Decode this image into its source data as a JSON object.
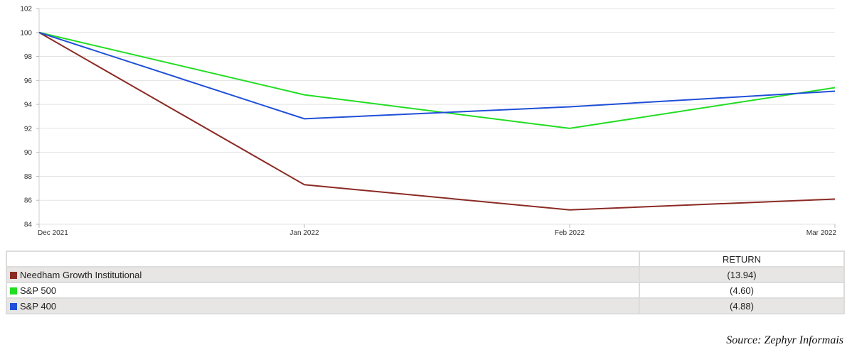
{
  "chart_data": {
    "type": "line",
    "x": [
      "Dec 2021",
      "Jan 2022",
      "Feb 2022",
      "Mar 2022"
    ],
    "ylim": [
      84,
      102
    ],
    "yticks": [
      84,
      86,
      88,
      90,
      92,
      94,
      96,
      98,
      100,
      102
    ],
    "grid": true,
    "series": [
      {
        "name": "Needham Growth Institutional",
        "color": "#8b2a24",
        "values": [
          100,
          87.3,
          85.2,
          86.1
        ]
      },
      {
        "name": "S&P 500",
        "color": "#22dd22",
        "values": [
          100,
          94.8,
          92.0,
          95.4
        ]
      },
      {
        "name": "S&P 400",
        "color": "#1f4fd8",
        "values": [
          100,
          92.8,
          93.8,
          95.1
        ]
      }
    ]
  },
  "table": {
    "header": "RETURN",
    "rows": [
      {
        "name": "Needham Growth Institutional",
        "color": "#8b2a24",
        "value": "(13.94)"
      },
      {
        "name": "S&P 500",
        "color": "#22dd22",
        "value": "(4.60)"
      },
      {
        "name": "S&P 400",
        "color": "#1f4fd8",
        "value": "(4.88)"
      }
    ]
  },
  "source": "Source: Zephyr Informais"
}
